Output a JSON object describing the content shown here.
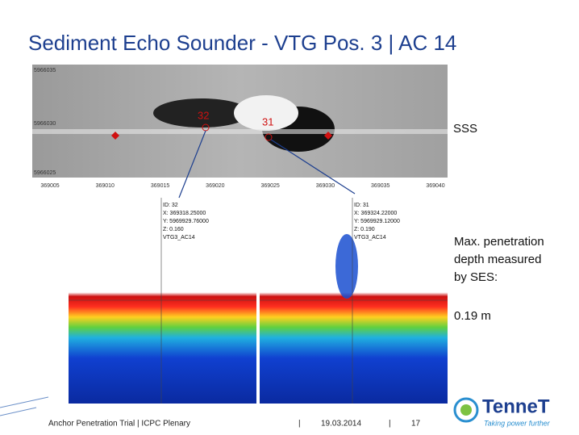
{
  "header": {
    "title": "Sediment Echo Sounder - VTG Pos. 3 | AC 14"
  },
  "sss_image": {
    "y_labels": [
      "5966035",
      "5966030",
      "5966025"
    ],
    "x_labels": [
      "369005",
      "369010",
      "369015",
      "369020",
      "369025",
      "369030",
      "369035",
      "369040"
    ],
    "markers": [
      "32",
      "31"
    ]
  },
  "panels": [
    {
      "lines": [
        "ID: 32",
        "X: 369318.25000",
        "Y: 5969929.76000",
        "Z: 0.160",
        "VTG3_AC14"
      ]
    },
    {
      "lines": [
        "ID: 31",
        "X: 369324.22000",
        "Y: 5969929.12000",
        "Z: 0.190",
        "VTG3_AC14"
      ]
    }
  ],
  "notes": {
    "sss": "SSS",
    "penetration": [
      "Max. penetration",
      "depth measured",
      "by SES:"
    ],
    "depth": "0.19 m"
  },
  "footer": {
    "event": "Anchor Penetration Trial | ICPC Plenary",
    "sep1": "|",
    "date": "19.03.2014",
    "sep2": "|",
    "page": "17"
  },
  "logo": {
    "name": "TenneT",
    "tagline": "Taking power further"
  }
}
